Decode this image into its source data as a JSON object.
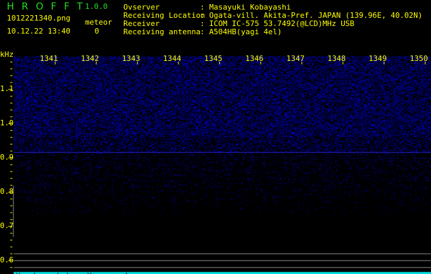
{
  "app": {
    "title": "HROFFT",
    "version": "1.0.0"
  },
  "file": {
    "name": "1012221340.png",
    "datetime": "10.12.22 13:40"
  },
  "meteor": {
    "label": "meteor",
    "count": "0"
  },
  "info": [
    {
      "label": "Ovserver",
      "value": ": Masayuki Kobayashi"
    },
    {
      "label": "Receiving Location",
      "value": ": Ogata-vill. Akita-Pref. JAPAN (139.96E, 40.02N)"
    },
    {
      "label": "Receiver",
      "value": ": ICOM IC-575 53.7492(@LCD)MHz USB"
    },
    {
      "label": "Receiving antenna",
      "value": ": A504HB(yagi 4el)"
    }
  ],
  "axes": {
    "y_unit": "kHz",
    "x_ticks": [
      "1341",
      "1342",
      "1343",
      "1344",
      "1345",
      "1346",
      "1347",
      "1348",
      "1349",
      "1350"
    ],
    "y_ticks": [
      "1.1",
      "1.0",
      "0.9",
      "0.8",
      "0.7",
      "0.6"
    ]
  },
  "colors": {
    "text": "#ffff00",
    "title": "#22dd22",
    "signal": "#2020ff",
    "marker": "#00ffff"
  }
}
